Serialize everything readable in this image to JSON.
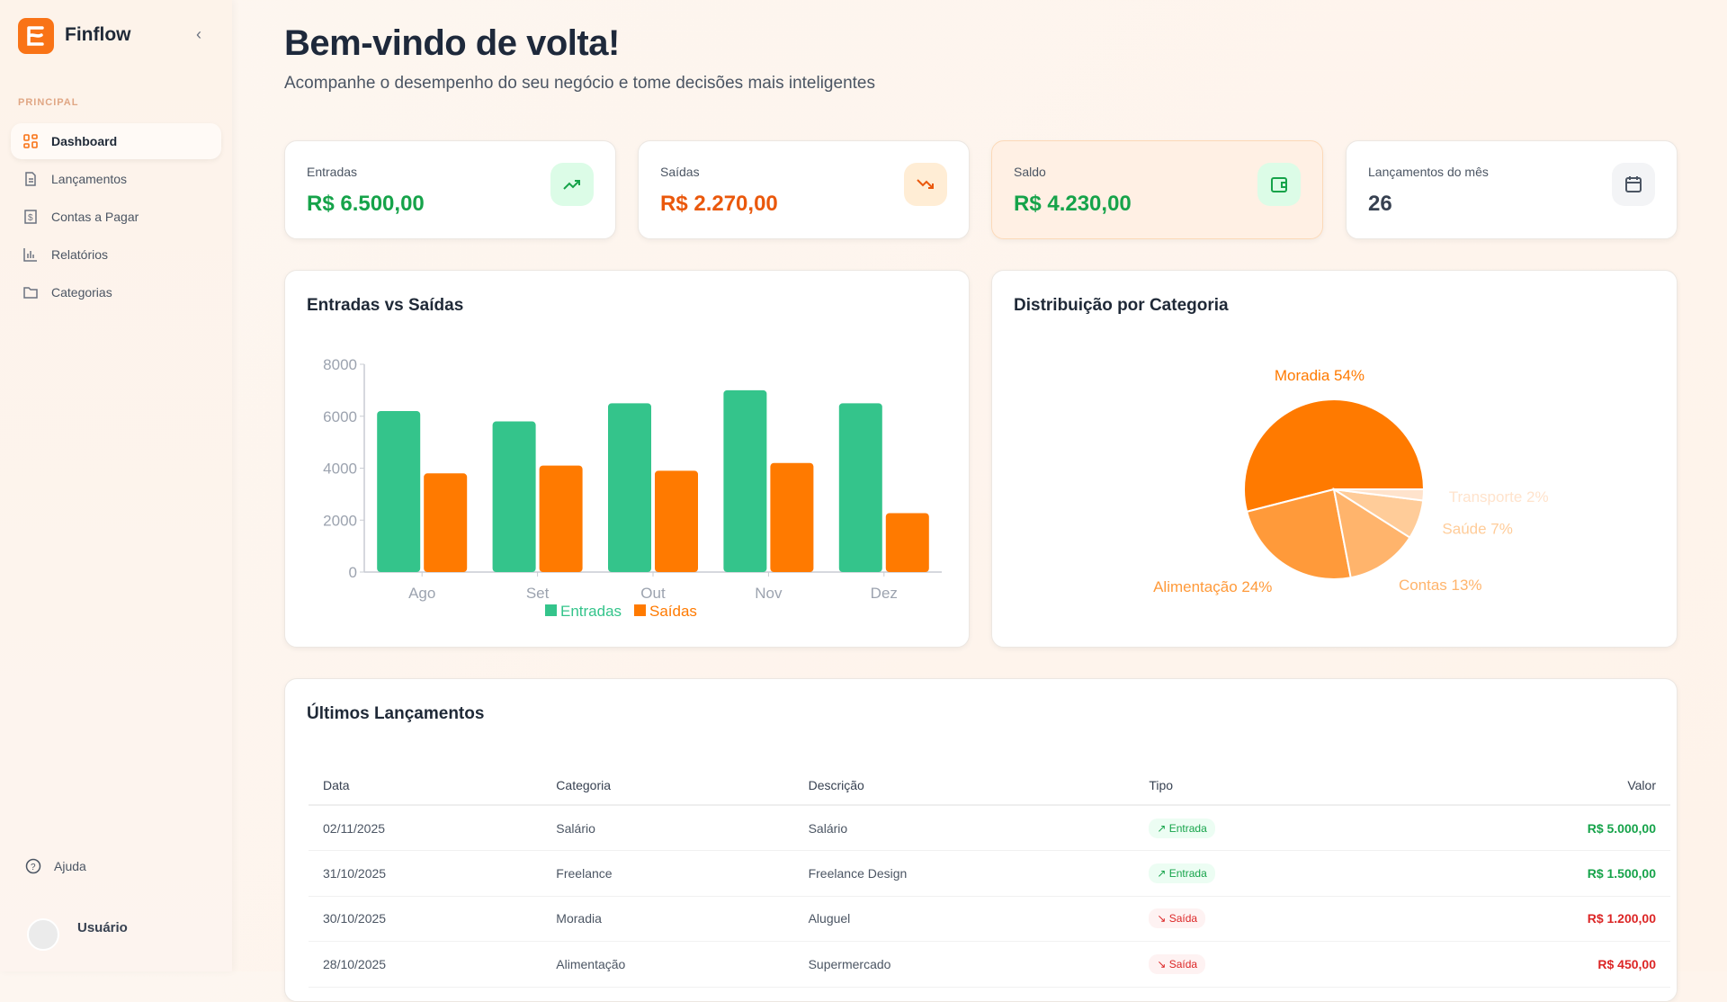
{
  "sidebar": {
    "brand": "Finflow",
    "section": "PRINCIPAL",
    "items": [
      {
        "label": "Dashboard",
        "icon": "grid-icon"
      },
      {
        "label": "Lançamentos",
        "icon": "document-icon"
      },
      {
        "label": "Contas a Pagar",
        "icon": "bill-icon"
      },
      {
        "label": "Relatórios",
        "icon": "bar-chart-icon"
      },
      {
        "label": "Categorias",
        "icon": "folder-icon"
      }
    ],
    "help": "Ajuda",
    "user": "Usuário"
  },
  "header": {
    "title": "Bem-vindo de volta!",
    "subtitle": "Acompanhe o desempenho do seu negócio e tome decisões mais inteligentes"
  },
  "stats": [
    {
      "label": "Entradas",
      "value": "R$ 6.500,00",
      "color": "#16a34a",
      "icon": "trending-up-icon"
    },
    {
      "label": "Saídas",
      "value": "R$ 2.270,00",
      "color": "#ea580c",
      "icon": "trending-down-icon"
    },
    {
      "label": "Saldo",
      "value": "R$ 4.230,00",
      "color": "#16a34a",
      "icon": "wallet-icon"
    },
    {
      "label": "Lançamentos do mês",
      "value": "26",
      "color": "#374151",
      "icon": "calendar-icon"
    }
  ],
  "chart_data": [
    {
      "type": "bar",
      "title": "Entradas vs Saídas",
      "categories": [
        "Ago",
        "Set",
        "Out",
        "Nov",
        "Dez"
      ],
      "series": [
        {
          "name": "Entradas",
          "values": [
            6200,
            5800,
            6500,
            7000,
            6500
          ],
          "color": "#34c48b"
        },
        {
          "name": "Saídas",
          "values": [
            3800,
            4100,
            3900,
            4200,
            2270
          ],
          "color": "#ff7a00"
        }
      ],
      "yticks": [
        "0",
        "2000",
        "4000",
        "6000",
        "8000"
      ],
      "ylim": [
        0,
        8000
      ],
      "legend": "bottom",
      "grid": false
    },
    {
      "type": "pie",
      "title": "Distribuição por Categoria",
      "slices": [
        {
          "name": "Moradia",
          "value": 54,
          "label": "Moradia 54%",
          "color": "#ff7a00"
        },
        {
          "name": "Alimentação",
          "value": 24,
          "label": "Alimentação 24%",
          "color": "#ff9a3a"
        },
        {
          "name": "Contas",
          "value": 13,
          "label": "Contas 13%",
          "color": "#ffb46c"
        },
        {
          "name": "Saúde",
          "value": 7,
          "label": "Saúde 7%",
          "color": "#ffcc99"
        },
        {
          "name": "Transporte",
          "value": 2,
          "label": "Transporte 2%",
          "color": "#ffe3cc"
        }
      ]
    }
  ],
  "table": {
    "title": "Últimos Lançamentos",
    "columns": [
      "Data",
      "Categoria",
      "Descrição",
      "Tipo",
      "Valor"
    ],
    "rows": [
      [
        "02/11/2025",
        "Salário",
        "Salário",
        "↗ Entrada",
        "R$ 5.000,00"
      ],
      [
        "31/10/2025",
        "Freelance",
        "Freelance Design",
        "↗ Entrada",
        "R$ 1.500,00"
      ],
      [
        "30/10/2025",
        "Moradia",
        "Aluguel",
        "↘ Saída",
        "R$ 1.200,00"
      ],
      [
        "28/10/2025",
        "Alimentação",
        "Supermercado",
        "↘ Saída",
        "R$ 450,00"
      ]
    ]
  }
}
